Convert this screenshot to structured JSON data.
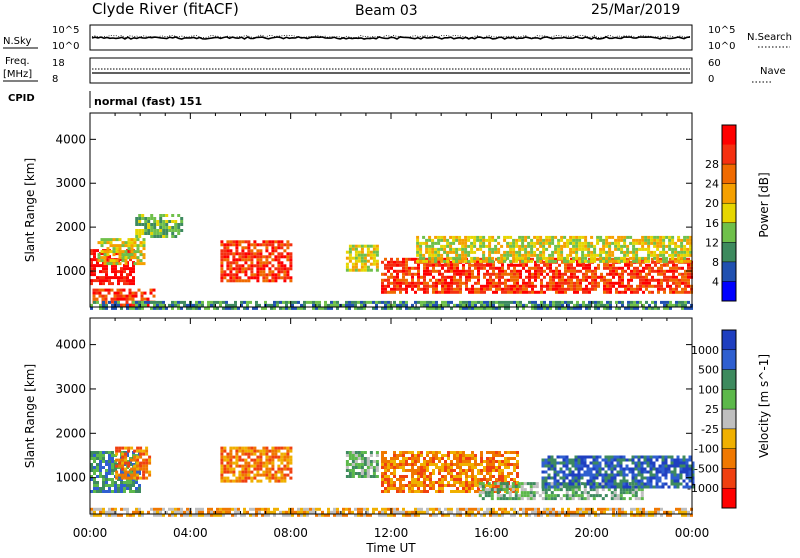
{
  "header": {
    "station": "Clyde River (fitACF)",
    "beam": "Beam 03",
    "date": "25/Mar/2019"
  },
  "top_panels": {
    "nsky_label": "N.Sky",
    "nsearch_label": "N.Search",
    "scale_hi": "10^5",
    "scale_lo": "10^0",
    "freq_label_1": "Freq.",
    "freq_label_2": "[MHz]",
    "freq_ticks": [
      "18",
      "8"
    ],
    "nave_label": "Nave",
    "nave_ticks": [
      "60",
      "0"
    ],
    "cpid_label": "CPID",
    "cpid_text": "normal (fast) 151"
  },
  "x_axis": {
    "title": "Time UT",
    "ticks": [
      "00:00",
      "04:00",
      "08:00",
      "12:00",
      "16:00",
      "20:00",
      "00:00"
    ]
  },
  "chart_data": [
    {
      "type": "heatmap",
      "title": "",
      "xlabel": "Time UT",
      "ylabel": "Slant Range [km]",
      "x_ticks": [
        "00:00",
        "04:00",
        "08:00",
        "12:00",
        "16:00",
        "20:00",
        "00:00"
      ],
      "y_ticks": [
        "1000",
        "2000",
        "3000",
        "4000"
      ],
      "ylim": [
        180,
        4600
      ],
      "colorbar": {
        "title": "Power [dB]",
        "ticks": [
          "4",
          "8",
          "12",
          "16",
          "20",
          "24",
          "28"
        ],
        "colors": [
          "#0000ff",
          "#2050b0",
          "#3d8a5e",
          "#6fc04a",
          "#e6d600",
          "#f5a000",
          "#f06a00",
          "#f53010",
          "#ff0000"
        ]
      },
      "regions": [
        {
          "t0": 0.0,
          "t1": 1.7,
          "r0": 700,
          "r1": 1500,
          "level": 8
        },
        {
          "t0": 0.3,
          "t1": 2.2,
          "r0": 1200,
          "r1": 1750,
          "level": 4
        },
        {
          "t0": 0.1,
          "t1": 2.5,
          "r0": 200,
          "r1": 600,
          "level": 7
        },
        {
          "t0": 1.8,
          "t1": 3.6,
          "r0": 1800,
          "r1": 2300,
          "level": 3
        },
        {
          "t0": 5.2,
          "t1": 8.0,
          "r0": 800,
          "r1": 1700,
          "level": 7
        },
        {
          "t0": 10.2,
          "t1": 11.5,
          "r0": 1000,
          "r1": 1600,
          "level": 4
        },
        {
          "t0": 11.6,
          "t1": 24.0,
          "r0": 500,
          "r1": 1300,
          "level": 7
        },
        {
          "t0": 13.0,
          "t1": 24.0,
          "r0": 1200,
          "r1": 1800,
          "level": 4
        },
        {
          "t0": 0.0,
          "t1": 24.0,
          "r0": 180,
          "r1": 320,
          "level": 2
        }
      ]
    },
    {
      "type": "heatmap",
      "title": "",
      "xlabel": "Time UT",
      "ylabel": "Slant Range [km]",
      "x_ticks": [
        "00:00",
        "04:00",
        "08:00",
        "12:00",
        "16:00",
        "20:00",
        "00:00"
      ],
      "y_ticks": [
        "1000",
        "2000",
        "3000",
        "4000"
      ],
      "ylim": [
        180,
        4600
      ],
      "colorbar": {
        "title": "Velocity [m s^-1]",
        "ticks": [
          "1000",
          "500",
          "100",
          "25",
          "-25",
          "-100",
          "-500",
          "-1000"
        ],
        "colors": [
          "#1f3fc0",
          "#2f5fd0",
          "#3d8a5e",
          "#5cb84a",
          "#bfbfbf",
          "#f0b000",
          "#f07800",
          "#f04010",
          "#ff0000"
        ]
      },
      "regions": [
        {
          "t0": 0.0,
          "t1": 2.0,
          "r0": 700,
          "r1": 1600,
          "level": 2
        },
        {
          "t0": 1.0,
          "t1": 2.4,
          "r0": 1000,
          "r1": 1700,
          "level": 6
        },
        {
          "t0": 5.2,
          "t1": 8.0,
          "r0": 900,
          "r1": 1700,
          "level": 6
        },
        {
          "t0": 10.2,
          "t1": 11.5,
          "r0": 1000,
          "r1": 1600,
          "level": 3
        },
        {
          "t0": 11.6,
          "t1": 17.0,
          "r0": 700,
          "r1": 1600,
          "level": 6
        },
        {
          "t0": 15.5,
          "t1": 22.0,
          "r0": 500,
          "r1": 900,
          "level": 3
        },
        {
          "t0": 18.0,
          "t1": 24.0,
          "r0": 800,
          "r1": 1500,
          "level": 1
        },
        {
          "t0": 0.0,
          "t1": 24.0,
          "r0": 180,
          "r1": 320,
          "level": 5
        }
      ]
    }
  ]
}
